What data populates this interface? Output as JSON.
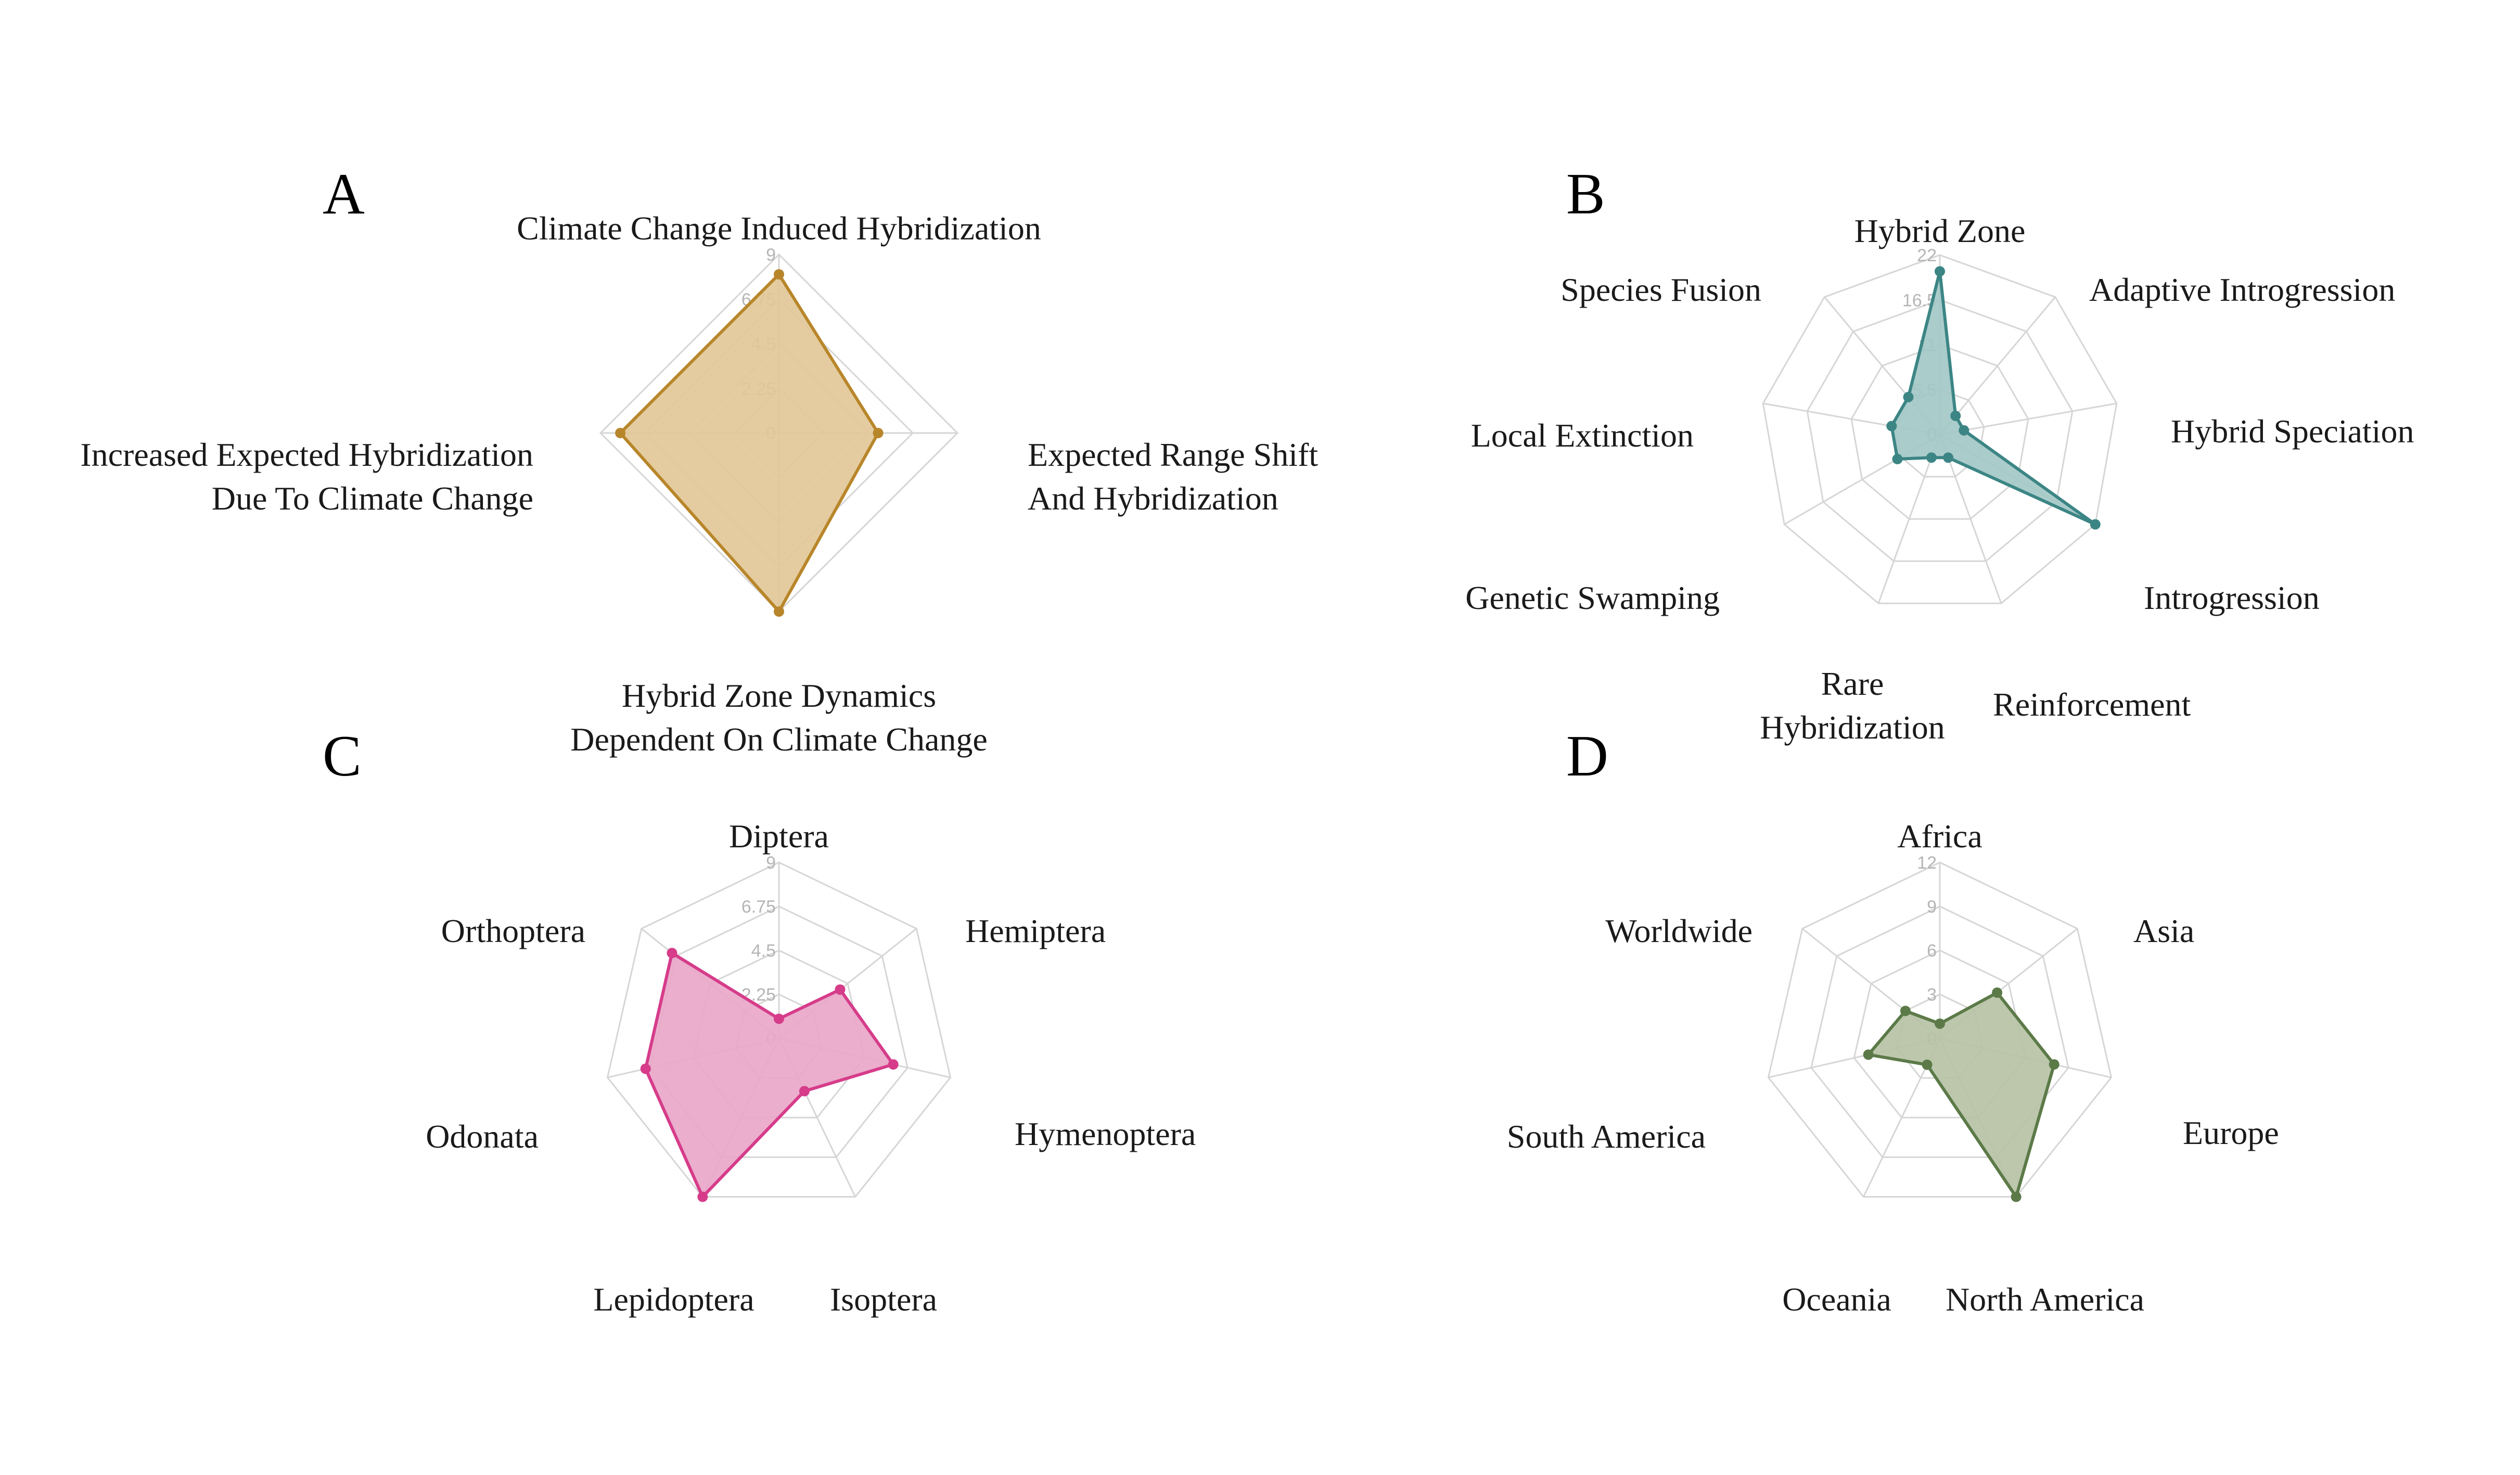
{
  "figure": {
    "panels": [
      {
        "letter": "A"
      },
      {
        "letter": "B"
      },
      {
        "letter": "C"
      },
      {
        "letter": "D"
      }
    ]
  },
  "chart_data": [
    {
      "type": "radar",
      "panel": "A",
      "color": "#b8862a",
      "fill": "#e2c898",
      "ticks": [
        "0",
        "2.25",
        "4.5",
        "6.75",
        "9"
      ],
      "rmax": 9,
      "axes": [
        "Climate Change Induced Hybridization",
        "Expected Range  Shift\nAnd Hybridization",
        "Hybrid Zone Dynamics\nDependent On Climate Change",
        "Increased Expected Hybridization\nDue To Climate Change"
      ],
      "values": [
        8,
        5,
        9,
        8
      ]
    },
    {
      "type": "radar",
      "panel": "B",
      "color": "#3c8585",
      "fill": "#a3c8c7",
      "ticks": [
        "0",
        "5.5",
        "11",
        "16.5",
        "22"
      ],
      "rmax": 22,
      "axes": [
        "Hybrid Zone",
        "Adaptive Introgression",
        "Hybrid Speciation",
        "Introgression",
        "Reinforcement",
        "Rare\nHybridization",
        "Genetic Swamping",
        "Local Extinction",
        "Species Fusion"
      ],
      "values": [
        20,
        3,
        3,
        22,
        3,
        3,
        6,
        6,
        6
      ]
    },
    {
      "type": "radar",
      "panel": "C",
      "color": "#d63c8a",
      "fill": "#e9a7c9",
      "ticks": [
        "0",
        "2.25",
        "4.5",
        "6.75",
        "9"
      ],
      "rmax": 9,
      "axes": [
        "Diptera",
        "Hemiptera",
        "Hymenoptera",
        "Isoptera",
        "Lepidoptera",
        "Odonata",
        "Orthoptera"
      ],
      "values": [
        1,
        4,
        6,
        3,
        9,
        7,
        7
      ]
    },
    {
      "type": "radar",
      "panel": "D",
      "color": "#5c7a48",
      "fill": "#b6c2a5",
      "ticks": [
        "0",
        "3",
        "6",
        "9",
        "12"
      ],
      "rmax": 12,
      "axes": [
        "Africa",
        "Asia",
        "Europe",
        "North America",
        "Oceania",
        "South America",
        "Worldwide"
      ],
      "values": [
        1,
        5,
        8,
        12,
        2,
        5,
        3
      ]
    }
  ]
}
